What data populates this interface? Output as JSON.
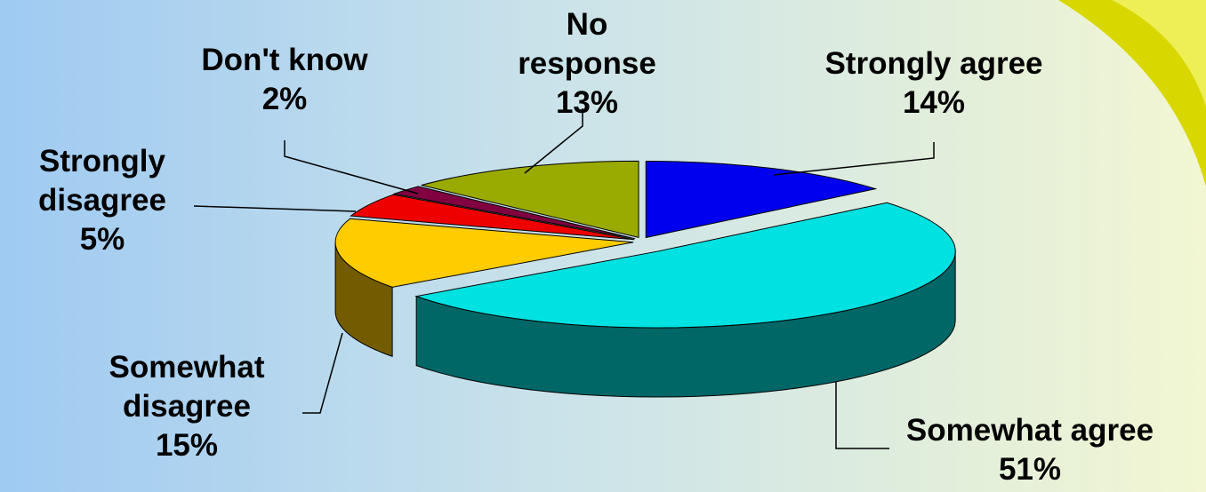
{
  "chart_data": {
    "type": "pie3d",
    "categories": [
      "Strongly agree",
      "Somewhat agree",
      "Somewhat disagree",
      "Strongly disagree",
      "Don't know",
      "No response"
    ],
    "values": [
      14,
      51,
      15,
      5,
      2,
      13
    ],
    "value_labels": [
      "14%",
      "51%",
      "15%",
      "5%",
      "2%",
      "13%"
    ],
    "colors": [
      "#0000ee",
      "#00e2e2",
      "#ffcc00",
      "#ee0000",
      "#800040",
      "#99aa00"
    ]
  }
}
